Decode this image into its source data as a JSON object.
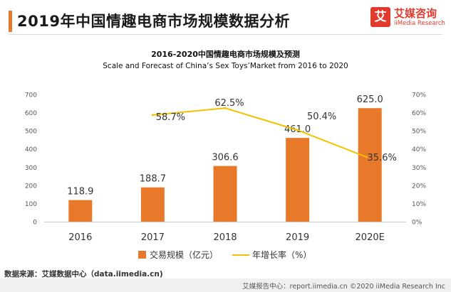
{
  "header": {
    "title": "2019年中国情趣电商市场规模数据分析",
    "accent_color": "#E8782A"
  },
  "logo": {
    "mark": "艾",
    "name": "艾媒咨询",
    "sub": "iiMedia Research",
    "color": "#E23B2E"
  },
  "chart_data": {
    "type": "bar",
    "title": "2016-2020中国情趣电商市场规模及预测",
    "subtitle": "Scale and Forecast of China’s Sex Toys’Market from 2016 to 2020",
    "categories": [
      "2016",
      "2017",
      "2018",
      "2019",
      "2020E"
    ],
    "series": [
      {
        "name": "交易规模（亿元）",
        "type": "bar",
        "axis": "left",
        "color": "#E8782A",
        "values": [
          118.9,
          188.7,
          306.6,
          461.0,
          625.0
        ],
        "labels": [
          "118.9",
          "188.7",
          "306.6",
          "461.0",
          "625.0"
        ]
      },
      {
        "name": "年增长率（%）",
        "type": "line",
        "axis": "right",
        "color": "#F2C200",
        "values": [
          null,
          58.7,
          62.5,
          50.4,
          35.6
        ],
        "labels": [
          "",
          "58.7%",
          "62.5%",
          "50.4%",
          "35.6%"
        ]
      }
    ],
    "y_left": {
      "min": 0,
      "max": 700,
      "ticks": [
        0,
        100,
        200,
        300,
        400,
        500,
        600,
        700
      ],
      "tick_labels": [
        "0",
        "100",
        "200",
        "300",
        "400",
        "500",
        "600",
        "700"
      ]
    },
    "y_right": {
      "min": 0,
      "max": 70,
      "ticks": [
        0,
        10,
        20,
        30,
        40,
        50,
        60,
        70
      ],
      "tick_labels": [
        "0%",
        "10%",
        "20%",
        "30%",
        "40%",
        "50%",
        "60%",
        "70%"
      ]
    },
    "grid": false,
    "legend": "bottom"
  },
  "source": {
    "text": "数据来源：艾媒数据中心（data.iimedia.cn)"
  },
  "footer": {
    "text": "艾媒报告中心：report.iimedia.cn  ©2020  iiMedia Research  Inc"
  }
}
